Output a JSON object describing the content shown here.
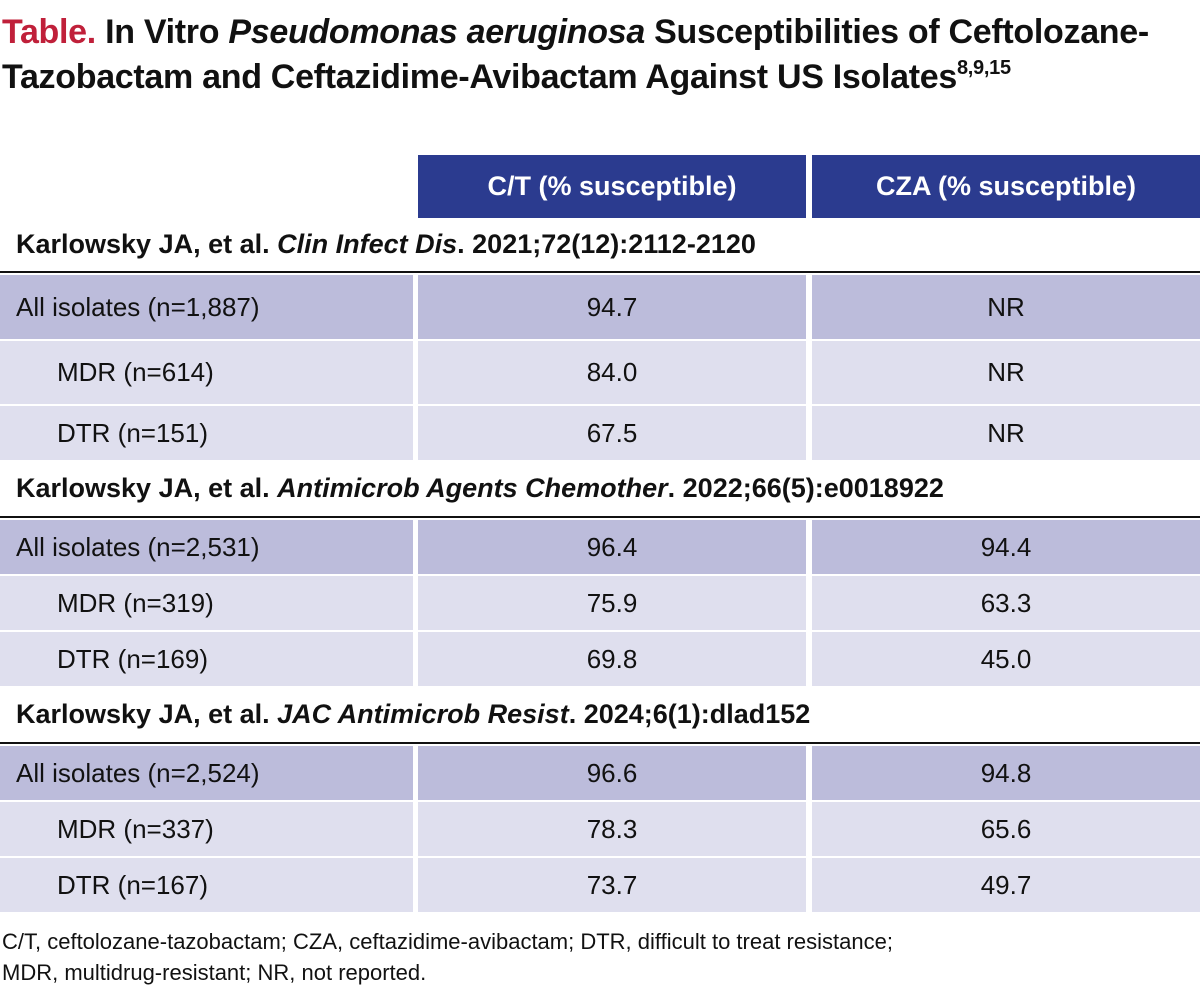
{
  "title": {
    "label": "Table.",
    "pre": "In Vitro ",
    "italic": "Pseudomonas aeruginosa",
    "post": " Susceptibilities of Ceftolozane-Tazobactam and Ceftazidime-Avibactam Against US Isolates",
    "superscript": "8,9,15"
  },
  "table": {
    "headers": [
      "C/T (% susceptible)",
      "CZA (% susceptible)"
    ],
    "sections": [
      {
        "citation": {
          "authors": "Karlowsky JA, et al. ",
          "journal": "Clin Infect Dis",
          "details": ". 2021;72(12):2112-2120"
        },
        "rows": [
          [
            "All isolates (n=1,887)",
            "94.7",
            "NR"
          ],
          [
            "MDR (n=614)",
            "84.0",
            "NR"
          ],
          [
            "DTR (n=151)",
            "67.5",
            "NR"
          ]
        ]
      },
      {
        "citation": {
          "authors": "Karlowsky JA, et al. ",
          "journal": "Antimicrob Agents Chemother",
          "details": ". 2022;66(5):e0018922"
        },
        "rows": [
          [
            "All isolates (n=2,531)",
            "96.4",
            "94.4"
          ],
          [
            "MDR (n=319)",
            "75.9",
            "63.3"
          ],
          [
            "DTR (n=169)",
            "69.8",
            "45.0"
          ]
        ]
      },
      {
        "citation": {
          "authors": "Karlowsky JA, et al. ",
          "journal": "JAC Antimicrob Resist",
          "details": ". 2024;6(1):dlad152"
        },
        "rows": [
          [
            "All isolates (n=2,524)",
            "96.6",
            "94.8"
          ],
          [
            "MDR (n=337)",
            "78.3",
            "65.6"
          ],
          [
            "DTR (n=167)",
            "73.7",
            "49.7"
          ]
        ]
      }
    ]
  },
  "footnote": [
    "C/T, ceftolozane-tazobactam; CZA, ceftazidime-avibactam; DTR, difficult to treat resistance;",
    "MDR, multidrug-resistant; NR, not reported."
  ]
}
